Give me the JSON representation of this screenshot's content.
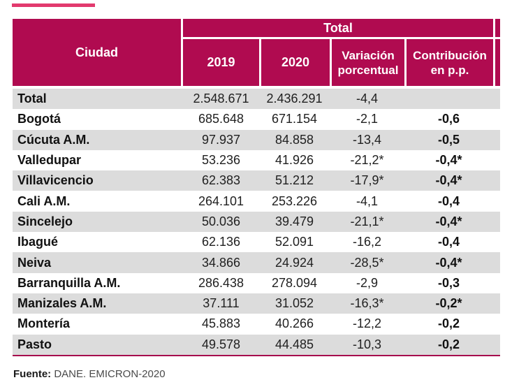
{
  "colors": {
    "accent_bar": "#E23A6E",
    "header_fill": "#B00B50",
    "stripe_fill": "#DCDCDC",
    "bottom_rule": "#A60C4D"
  },
  "table": {
    "header": {
      "ciudad": "Ciudad",
      "total": "Total",
      "col_2019": "2019",
      "col_2020": "2020",
      "variacion_line1": "Variación",
      "variacion_line2": "porcentual",
      "contribucion_line1": "Contribución",
      "contribucion_line2": "en p.p."
    },
    "rows": [
      {
        "ciudad": "Total",
        "y2019": "2.548.671",
        "y2020": "2.436.291",
        "variacion": "-4,4",
        "contribucion": ""
      },
      {
        "ciudad": "Bogotá",
        "y2019": "685.648",
        "y2020": "671.154",
        "variacion": "-2,1",
        "contribucion": "-0,6"
      },
      {
        "ciudad": "Cúcuta A.M.",
        "y2019": "97.937",
        "y2020": "84.858",
        "variacion": "-13,4",
        "contribucion": "-0,5"
      },
      {
        "ciudad": "Valledupar",
        "y2019": "53.236",
        "y2020": "41.926",
        "variacion": "-21,2*",
        "contribucion": "-0,4*"
      },
      {
        "ciudad": "Villavicencio",
        "y2019": "62.383",
        "y2020": "51.212",
        "variacion": "-17,9*",
        "contribucion": "-0,4*"
      },
      {
        "ciudad": "Cali A.M.",
        "y2019": "264.101",
        "y2020": "253.226",
        "variacion": "-4,1",
        "contribucion": "-0,4"
      },
      {
        "ciudad": "Sincelejo",
        "y2019": "50.036",
        "y2020": "39.479",
        "variacion": "-21,1*",
        "contribucion": "-0,4*"
      },
      {
        "ciudad": "Ibagué",
        "y2019": "62.136",
        "y2020": "52.091",
        "variacion": "-16,2",
        "contribucion": "-0,4"
      },
      {
        "ciudad": "Neiva",
        "y2019": "34.866",
        "y2020": "24.924",
        "variacion": "-28,5*",
        "contribucion": "-0,4*"
      },
      {
        "ciudad": "Barranquilla A.M.",
        "y2019": "286.438",
        "y2020": "278.094",
        "variacion": "-2,9",
        "contribucion": "-0,3"
      },
      {
        "ciudad": "Manizales A.M.",
        "y2019": "37.111",
        "y2020": "31.052",
        "variacion": "-16,3*",
        "contribucion": "-0,2*"
      },
      {
        "ciudad": "Montería",
        "y2019": "45.883",
        "y2020": "40.266",
        "variacion": "-12,2",
        "contribucion": "-0,2"
      },
      {
        "ciudad": "Pasto",
        "y2019": "49.578",
        "y2020": "44.485",
        "variacion": "-10,3",
        "contribucion": "-0,2"
      }
    ]
  },
  "footer": {
    "label": "Fuente:",
    "text": " DANE. EMICRON-2020"
  }
}
